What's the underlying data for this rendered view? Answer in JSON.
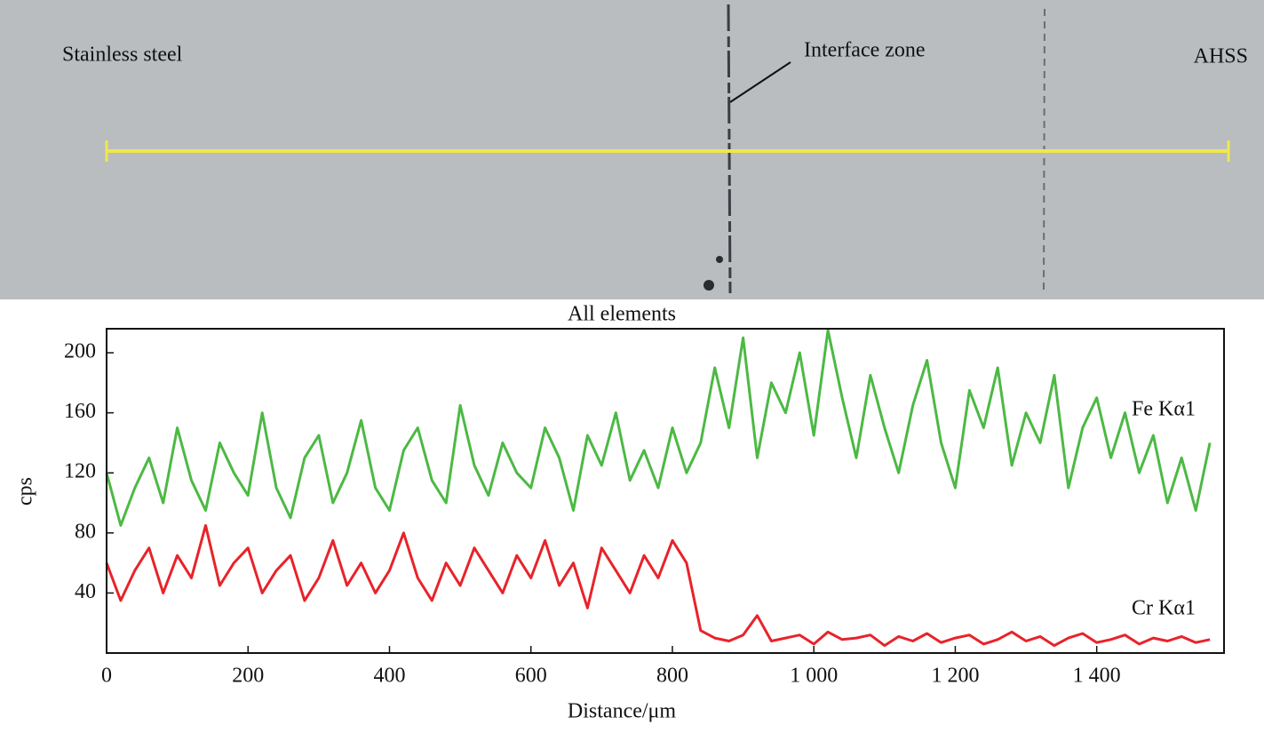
{
  "image_labels": {
    "left": "Stainless steel",
    "interface": "Interface zone",
    "right": "AHSS"
  },
  "chart_data": {
    "type": "line",
    "title": "All elements",
    "x_label": "Distance/μm",
    "y_label": "cps",
    "x": [
      0,
      20,
      40,
      60,
      80,
      100,
      120,
      140,
      160,
      180,
      200,
      220,
      240,
      260,
      280,
      300,
      320,
      340,
      360,
      380,
      400,
      420,
      440,
      460,
      480,
      500,
      520,
      540,
      560,
      580,
      600,
      620,
      640,
      660,
      680,
      700,
      720,
      740,
      760,
      780,
      800,
      820,
      840,
      860,
      880,
      900,
      920,
      940,
      960,
      980,
      1000,
      1020,
      1040,
      1060,
      1080,
      1100,
      1120,
      1140,
      1160,
      1180,
      1200,
      1220,
      1240,
      1260,
      1280,
      1300,
      1320,
      1340,
      1360,
      1380,
      1400,
      1420,
      1440,
      1460,
      1480,
      1500,
      1520,
      1540,
      1560
    ],
    "series": [
      {
        "name": "Fe Kα1",
        "color": "#4cb944",
        "values": [
          120,
          85,
          110,
          130,
          100,
          150,
          115,
          95,
          140,
          120,
          105,
          160,
          110,
          90,
          130,
          145,
          100,
          120,
          155,
          110,
          95,
          135,
          150,
          115,
          100,
          165,
          125,
          105,
          140,
          120,
          110,
          150,
          130,
          95,
          145,
          125,
          160,
          115,
          135,
          110,
          150,
          120,
          140,
          190,
          150,
          210,
          130,
          180,
          160,
          200,
          145,
          215,
          170,
          130,
          185,
          150,
          120,
          165,
          195,
          140,
          110,
          175,
          150,
          190,
          125,
          160,
          140,
          185,
          110,
          150,
          170,
          130,
          160,
          120,
          145,
          100,
          130,
          95,
          140
        ]
      },
      {
        "name": "Cr Kα1",
        "color": "#e8232a",
        "values": [
          60,
          35,
          55,
          70,
          40,
          65,
          50,
          85,
          45,
          60,
          70,
          40,
          55,
          65,
          35,
          50,
          75,
          45,
          60,
          40,
          55,
          80,
          50,
          35,
          60,
          45,
          70,
          55,
          40,
          65,
          50,
          75,
          45,
          60,
          30,
          70,
          55,
          40,
          65,
          50,
          75,
          60,
          15,
          10,
          8,
          12,
          25,
          8,
          10,
          12,
          6,
          14,
          9,
          10,
          12,
          5,
          11,
          8,
          13,
          7,
          10,
          12,
          6,
          9,
          14,
          8,
          11,
          5,
          10,
          13,
          7,
          9,
          12,
          6,
          10,
          8,
          11,
          7,
          9
        ]
      }
    ],
    "xlim": [
      0,
      1580
    ],
    "ylim": [
      0,
      216
    ],
    "xticks": [
      0,
      200,
      400,
      600,
      800,
      {
        "value": 1000,
        "label": "1 000"
      },
      {
        "value": 1200,
        "label": "1 200"
      },
      {
        "value": 1400,
        "label": "1 400"
      }
    ],
    "yticks": [
      40,
      80,
      120,
      160,
      200
    ]
  }
}
